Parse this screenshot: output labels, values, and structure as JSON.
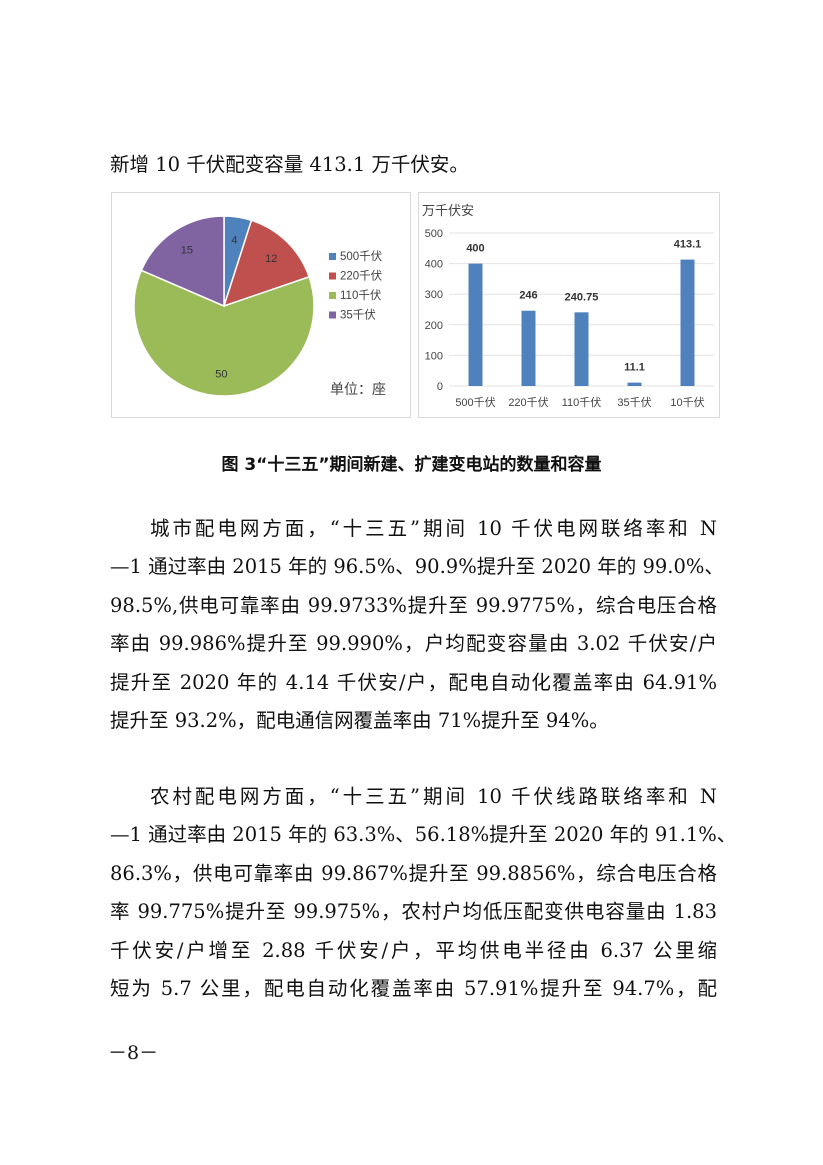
{
  "intro_line": "新增 10 千伏配变容量 413.1 万千伏安。",
  "figure": {
    "caption": "图 3“十三五”期间新建、扩建变电站的数量和容量",
    "pie_unit_label": "单位：座"
  },
  "chart_data": [
    {
      "type": "pie",
      "categories": [
        "500千伏",
        "220千伏",
        "110千伏",
        "35千伏"
      ],
      "values": [
        4,
        12,
        50,
        15
      ],
      "colors": [
        "#4f81bd",
        "#c0504d",
        "#9bbb59",
        "#8064a2"
      ],
      "legend": "right",
      "unit": "单位：座"
    },
    {
      "type": "bar",
      "ylabel": "万千伏安",
      "categories": [
        "500千伏",
        "220千伏",
        "110千伏",
        "35千伏",
        "10千伏"
      ],
      "values": [
        400,
        246,
        240.75,
        11.1,
        413.1
      ],
      "data_labels": [
        "400",
        "246",
        "240.75",
        "11.1",
        "413.1"
      ],
      "ylim": [
        0,
        500
      ],
      "yticks": [
        "0",
        "100",
        "200",
        "300",
        "400",
        "500"
      ],
      "grid": true,
      "color": "#4f81bd"
    }
  ],
  "paragraphs": [
    {
      "lines": [
        "城市配电网方面，“十三五”期间 10 千伏电网联络率和 N",
        "—1 通过率由 2015 年的 96.5%、90.9%提升至 2020 年的 99.0%、",
        "98.5%,供电可靠率由 99.9733%提升至 99.9775%，综合电压合格",
        "率由 99.986%提升至 99.990%，户均配变容量由 3.02 千伏安/户",
        "提升至 2020 年的 4.14 千伏安/户，配电自动化覆盖率由 64.91%",
        "提升至 93.2%，配电通信网覆盖率由 71%提升至 94%。"
      ]
    },
    {
      "lines": [
        "农村配电网方面，“十三五”期间 10 千伏线路联络率和 N",
        "—1 通过率由 2015 年的 63.3%、56.18%提升至 2020 年的 91.1%、",
        "86.3%，供电可靠率由 99.867%提升至 99.8856%，综合电压合格",
        "率 99.775%提升至 99.975%，农村户均低压配变供电容量由 1.83",
        "千伏安/户增至 2.88 千伏安/户，平均供电半径由 6.37 公里缩",
        "短为 5.7 公里，配电自动化覆盖率由 57.91%提升至 94.7%，配"
      ]
    }
  ],
  "page_number": "－8－"
}
